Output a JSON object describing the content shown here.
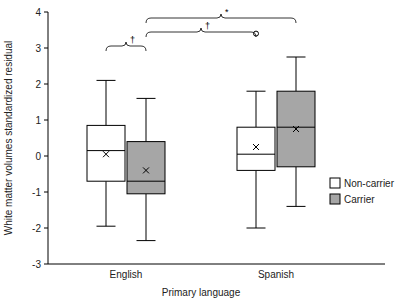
{
  "chart_data": {
    "type": "box",
    "x_label": "Primary language",
    "y_label": "White matter volumes standardized residual",
    "categories": [
      "English",
      "Spanish"
    ],
    "ylim": [
      -3,
      4
    ],
    "yticks": [
      -3,
      -2,
      -1,
      0,
      1,
      2,
      3,
      4
    ],
    "legend": "right",
    "series": [
      {
        "name": "Non-carrier",
        "color": "#ffffff",
        "whisker_low": [
          -1.95,
          -2.0
        ],
        "q1": [
          -0.7,
          -0.4
        ],
        "median": [
          0.15,
          0.05
        ],
        "q3": [
          0.85,
          0.8
        ],
        "whisker_high": [
          2.1,
          1.8
        ],
        "mean": [
          0.05,
          0.25
        ],
        "outliers": [
          [],
          [
            3.4
          ]
        ]
      },
      {
        "name": "Carrier",
        "color": "#a6a6a6",
        "whisker_low": [
          -2.35,
          -1.4
        ],
        "q1": [
          -1.05,
          -0.3
        ],
        "median": [
          -0.7,
          0.8
        ],
        "q3": [
          0.4,
          1.8
        ],
        "whisker_high": [
          1.6,
          2.75
        ],
        "mean": [
          -0.4,
          0.75
        ],
        "outliers": [
          [],
          []
        ]
      }
    ],
    "annotations": [
      "†",
      "†",
      "*"
    ]
  }
}
